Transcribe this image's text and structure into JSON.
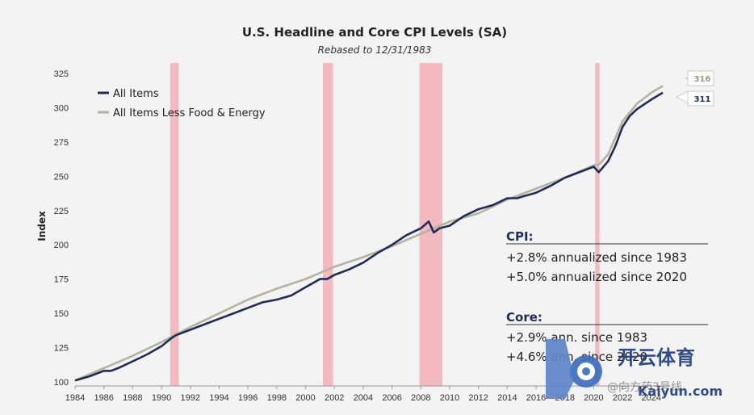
{
  "chart_data": {
    "type": "line",
    "title": "U.S. Headline and Core CPI Levels (SA)",
    "subtitle": "Rebased to 12/31/1983",
    "ylabel": "Index",
    "xlabel": "",
    "xlim": [
      1984,
      2025.3
    ],
    "ylim": [
      97,
      328
    ],
    "yticks": [
      100,
      125,
      150,
      175,
      200,
      225,
      250,
      275,
      300,
      325
    ],
    "xticks": [
      1984,
      1986,
      1988,
      1990,
      1992,
      1994,
      1996,
      1998,
      2000,
      2002,
      2004,
      2006,
      2008,
      2010,
      2012,
      2014,
      2016,
      2018,
      2020,
      2022,
      2024
    ],
    "recessions": [
      {
        "start": 1990.6,
        "end": 1991.2
      },
      {
        "start": 2001.2,
        "end": 2001.9
      },
      {
        "start": 2007.9,
        "end": 2009.5
      },
      {
        "start": 2020.1,
        "end": 2020.4
      }
    ],
    "series": [
      {
        "name": "All Items",
        "color": "#1c2d5a",
        "x": [
          1984,
          1985,
          1986,
          1986.5,
          1987,
          1988,
          1989,
          1990,
          1990.7,
          1991,
          1992,
          1993,
          1994,
          1995,
          1996,
          1997,
          1998,
          1999,
          2000,
          2001,
          2001.5,
          2002,
          2003,
          2004,
          2005,
          2006,
          2007,
          2008,
          2008.55,
          2008.9,
          2009.3,
          2010,
          2011,
          2012,
          2013,
          2014,
          2014.7,
          2015,
          2016,
          2017,
          2018,
          2019,
          2020,
          2020.35,
          2021,
          2021.5,
          2022,
          2022.5,
          2023,
          2024,
          2024.8
        ],
        "values": [
          101,
          104,
          108,
          108,
          110,
          115,
          120,
          126,
          132,
          134,
          138,
          142,
          146,
          150,
          154,
          158,
          160,
          163,
          169,
          175,
          175,
          178,
          182,
          187,
          194,
          200,
          207,
          212,
          217,
          209,
          212,
          214,
          221,
          226,
          229,
          234,
          234,
          235,
          238,
          243,
          249,
          253,
          257,
          253,
          261,
          272,
          286,
          294,
          299,
          306,
          311
        ]
      },
      {
        "name": "All Items Less Food & Energy",
        "color": "#b5b29e",
        "x": [
          1984,
          1986,
          1988,
          1990,
          1992,
          1994,
          1996,
          1998,
          2000,
          2002,
          2004,
          2006,
          2008,
          2010,
          2012,
          2014,
          2016,
          2018,
          2020,
          2020.4,
          2021,
          2022,
          2023,
          2024,
          2024.8
        ],
        "values": [
          101,
          110,
          119,
          129,
          140,
          150,
          160,
          168,
          175,
          184,
          191,
          199,
          208,
          217,
          223,
          233,
          241,
          249,
          258,
          259,
          266,
          290,
          303,
          311,
          316
        ]
      }
    ],
    "end_labels": [
      "316",
      "311"
    ],
    "annotations": {
      "cpi_head": "CPI:",
      "cpi_lines": [
        "+2.8% annualized since 1983",
        "+5.0% annualized since 2020"
      ],
      "core_head": "Core:",
      "core_lines": [
        "+2.9% ann. since 1983",
        "+4.6% ann. since 2020"
      ]
    }
  },
  "watermark": {
    "logo_text": "开云体育",
    "url_text": "Kaiyun.com",
    "overlay_text": "@向方药3号线"
  }
}
